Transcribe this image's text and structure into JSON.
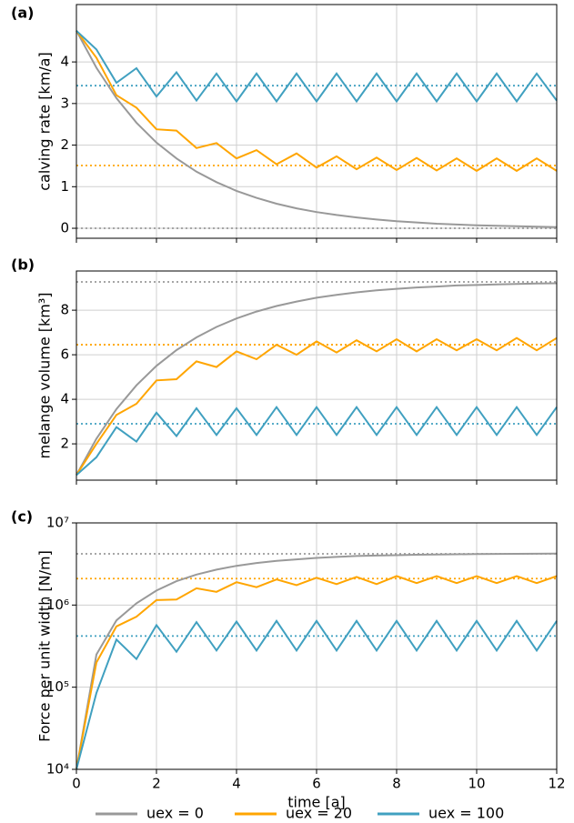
{
  "chart_data": [
    {
      "type": "line",
      "panel_label": "(a)",
      "ylabel": "calving rate [km/a]",
      "x": [
        0,
        0.5,
        1,
        1.5,
        2,
        2.5,
        3,
        3.5,
        4,
        4.5,
        5,
        5.5,
        6,
        6.5,
        7,
        7.5,
        8,
        8.5,
        9,
        9.5,
        10,
        10.5,
        11,
        11.5,
        12
      ],
      "xlim": [
        0,
        12
      ],
      "xticks": [
        0,
        2,
        4,
        6,
        8,
        10,
        12
      ],
      "ylim": [
        -0.24,
        5.38
      ],
      "yticks": [
        0,
        1,
        2,
        3,
        4
      ],
      "grid": true,
      "series": [
        {
          "color": "#999999",
          "values": [
            4.75,
            3.86,
            3.13,
            2.54,
            2.06,
            1.68,
            1.36,
            1.11,
            0.9,
            0.73,
            0.59,
            0.48,
            0.39,
            0.32,
            0.26,
            0.21,
            0.17,
            0.14,
            0.11,
            0.09,
            0.07,
            0.06,
            0.05,
            0.04,
            0.03
          ]
        },
        {
          "color": "#ffa500",
          "values": [
            4.75,
            4.1,
            3.2,
            2.9,
            2.38,
            2.35,
            1.93,
            2.05,
            1.68,
            1.88,
            1.54,
            1.8,
            1.46,
            1.73,
            1.42,
            1.7,
            1.4,
            1.69,
            1.39,
            1.68,
            1.38,
            1.68,
            1.38,
            1.68,
            1.38
          ]
        },
        {
          "color": "#40a0c0",
          "values": [
            4.75,
            4.3,
            3.5,
            3.85,
            3.17,
            3.75,
            3.07,
            3.72,
            3.05,
            3.72,
            3.05,
            3.72,
            3.05,
            3.72,
            3.05,
            3.72,
            3.05,
            3.72,
            3.05,
            3.72,
            3.05,
            3.72,
            3.05,
            3.72,
            3.07
          ]
        }
      ],
      "reference_lines": [
        {
          "color": "#999999",
          "value": 0
        },
        {
          "color": "#ffa500",
          "value": 1.51
        },
        {
          "color": "#40a0c0",
          "value": 3.43
        }
      ]
    },
    {
      "type": "line",
      "panel_label": "(b)",
      "ylabel": "melange volume [km³]",
      "x": [
        0,
        0.5,
        1,
        1.5,
        2,
        2.5,
        3,
        3.5,
        4,
        4.5,
        5,
        5.5,
        6,
        6.5,
        7,
        7.5,
        8,
        8.5,
        9,
        9.5,
        10,
        10.5,
        11,
        11.5,
        12
      ],
      "xlim": [
        0,
        12
      ],
      "xticks": [
        0,
        2,
        4,
        6,
        8,
        10,
        12
      ],
      "ylim": [
        0.37,
        9.76
      ],
      "yticks": [
        2,
        4,
        6,
        8
      ],
      "grid": true,
      "series": [
        {
          "color": "#999999",
          "values": [
            0.6,
            2.23,
            3.56,
            4.63,
            5.5,
            6.21,
            6.78,
            7.25,
            7.63,
            7.94,
            8.19,
            8.39,
            8.56,
            8.69,
            8.8,
            8.89,
            8.96,
            9.02,
            9.06,
            9.11,
            9.13,
            9.16,
            9.18,
            9.2,
            9.21
          ]
        },
        {
          "color": "#ffa500",
          "values": [
            0.6,
            2.0,
            3.3,
            3.8,
            4.85,
            4.9,
            5.7,
            5.45,
            6.15,
            5.8,
            6.45,
            6.0,
            6.6,
            6.1,
            6.65,
            6.15,
            6.7,
            6.15,
            6.7,
            6.2,
            6.7,
            6.2,
            6.75,
            6.2,
            6.75
          ]
        },
        {
          "color": "#40a0c0",
          "values": [
            0.6,
            1.4,
            2.75,
            2.1,
            3.4,
            2.35,
            3.6,
            2.4,
            3.6,
            2.4,
            3.65,
            2.4,
            3.65,
            2.4,
            3.65,
            2.4,
            3.65,
            2.4,
            3.65,
            2.4,
            3.65,
            2.4,
            3.65,
            2.4,
            3.65
          ]
        }
      ],
      "reference_lines": [
        {
          "color": "#999999",
          "value": 9.27
        },
        {
          "color": "#ffa500",
          "value": 6.45
        },
        {
          "color": "#40a0c0",
          "value": 2.9
        }
      ]
    },
    {
      "type": "line",
      "panel_label": "(c)",
      "ylabel": "Force per unit width [N/m]",
      "xlabel": "time [a]",
      "x": [
        0,
        0.5,
        1,
        1.5,
        2,
        2.5,
        3,
        3.5,
        4,
        4.5,
        5,
        5.5,
        6,
        6.5,
        7,
        7.5,
        8,
        8.5,
        9,
        9.5,
        10,
        10.5,
        11,
        11.5,
        12
      ],
      "xlim": [
        0,
        12
      ],
      "xticks": [
        0,
        2,
        4,
        6,
        8,
        10,
        12
      ],
      "ylim": [
        10000,
        10000000
      ],
      "log_y": true,
      "grid": true,
      "yticks": [
        {
          "value": 10000,
          "label": "10⁴"
        },
        {
          "value": 100000,
          "label": "10⁵"
        },
        {
          "value": 1000000,
          "label": "10⁶"
        },
        {
          "value": 10000000,
          "label": "10⁷"
        }
      ],
      "series": [
        {
          "name": "uex = 0",
          "color": "#999999",
          "values": [
            10000,
            250000,
            650000,
            1050000,
            1500000,
            1950000,
            2350000,
            2700000,
            3000000,
            3250000,
            3450000,
            3600000,
            3750000,
            3850000,
            3950000,
            4000000,
            4050000,
            4100000,
            4120000,
            4150000,
            4170000,
            4190000,
            4200000,
            4210000,
            4220000
          ]
        },
        {
          "name": "uex = 20",
          "color": "#ffa500",
          "values": [
            10000,
            200000,
            550000,
            720000,
            1150000,
            1170000,
            1600000,
            1450000,
            1900000,
            1650000,
            2050000,
            1750000,
            2150000,
            1800000,
            2200000,
            1800000,
            2250000,
            1850000,
            2250000,
            1850000,
            2250000,
            1850000,
            2250000,
            1850000,
            2250000
          ]
        },
        {
          "name": "uex = 100",
          "color": "#40a0c0",
          "values": [
            10000,
            85000,
            380000,
            220000,
            570000,
            270000,
            620000,
            280000,
            630000,
            280000,
            640000,
            280000,
            640000,
            280000,
            640000,
            280000,
            640000,
            280000,
            640000,
            280000,
            640000,
            280000,
            640000,
            280000,
            640000
          ]
        }
      ],
      "reference_lines": [
        {
          "color": "#999999",
          "value": 4200000
        },
        {
          "color": "#ffa500",
          "value": 2100000
        },
        {
          "color": "#40a0c0",
          "value": 420000
        }
      ]
    }
  ]
}
